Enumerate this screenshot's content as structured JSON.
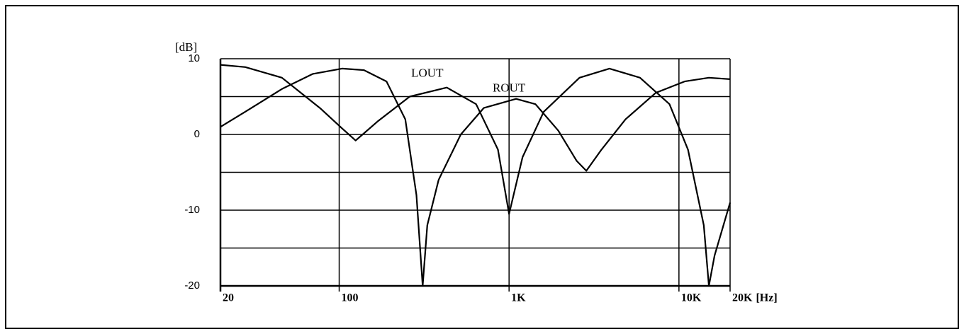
{
  "chart_data": {
    "type": "line",
    "xscale": "log",
    "ylabel": "[dB]",
    "xlabel": "[Hz]",
    "xlim": [
      20,
      20000
    ],
    "ylim": [
      -20,
      10
    ],
    "xticks": [
      20,
      100,
      {
        "value": 1000,
        "label": "1K"
      },
      {
        "value": 10000,
        "label": "10K"
      },
      {
        "value": 20000,
        "label": "20K"
      }
    ],
    "yticks": [
      10,
      0,
      -10,
      -20
    ],
    "ygrid": [
      5,
      -5,
      -15
    ],
    "grid": true,
    "annotations": [
      {
        "text": "LOUT",
        "x": 330,
        "y": 8
      },
      {
        "text": "ROUT",
        "x": 1000,
        "y": 6
      }
    ],
    "series": [
      {
        "color": "#000000",
        "x": [
          20,
          28,
          46,
          77,
          104,
          125,
          170,
          260,
          430,
          640,
          860,
          1000,
          1200,
          1600,
          2600,
          3900,
          5900,
          8800,
          11300,
          14000,
          15000,
          16200,
          20000
        ],
        "values": [
          9.2,
          8.9,
          7.5,
          3.5,
          0.8,
          -0.8,
          1.8,
          5,
          6.2,
          4,
          -2,
          -10.5,
          -3,
          3,
          7.5,
          8.7,
          7.5,
          4,
          -2,
          -12,
          -20,
          -16,
          -9
        ]
      },
      {
        "color": "#000000",
        "x": [
          20,
          28,
          46,
          70,
          104,
          140,
          190,
          245,
          285,
          310,
          330,
          385,
          520,
          710,
          1100,
          1430,
          1950,
          2500,
          2850,
          3500,
          4850,
          7300,
          10800,
          15000,
          20000
        ],
        "values": [
          1,
          3,
          6,
          8,
          8.7,
          8.5,
          7,
          2,
          -8,
          -20,
          -12,
          -6,
          0,
          3.5,
          4.7,
          4,
          0.5,
          -3.5,
          -4.8,
          -2,
          2,
          5.5,
          7,
          7.5,
          7.3
        ]
      }
    ]
  }
}
